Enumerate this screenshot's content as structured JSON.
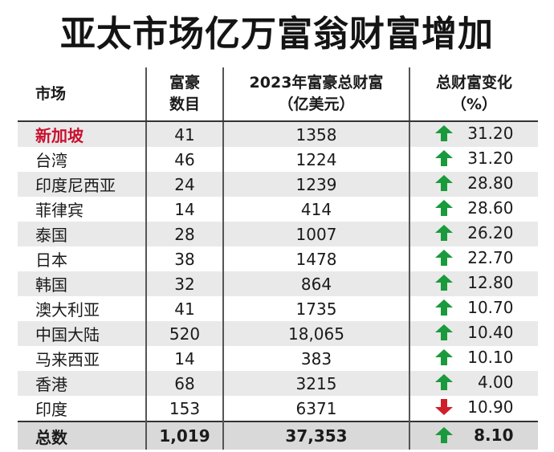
{
  "title": "亚太市场亿万富翁财富增加",
  "headers": {
    "market": "市场",
    "count_l1": "富豪",
    "count_l2": "数目",
    "wealth_l1": "2023年富豪总财富",
    "wealth_l2": "（亿美元）",
    "change_l1": "总财富变化",
    "change_l2": "（%）"
  },
  "colors": {
    "up": "#1a9a3c",
    "down": "#d01f2a",
    "highlight": "#c8102e"
  },
  "rows": [
    {
      "market": "新加坡",
      "count": "41",
      "wealth": "1358",
      "change": "31.20",
      "dir": "up"
    },
    {
      "market": "台湾",
      "count": "46",
      "wealth": "1224",
      "change": "31.20",
      "dir": "up"
    },
    {
      "market": "印度尼西亚",
      "count": "24",
      "wealth": "1239",
      "change": "28.80",
      "dir": "up"
    },
    {
      "market": "菲律宾",
      "count": "14",
      "wealth": "414",
      "change": "28.60",
      "dir": "up"
    },
    {
      "market": "泰国",
      "count": "28",
      "wealth": "1007",
      "change": "26.20",
      "dir": "up"
    },
    {
      "market": "日本",
      "count": "38",
      "wealth": "1478",
      "change": "22.70",
      "dir": "up"
    },
    {
      "market": "韩国",
      "count": "32",
      "wealth": "864",
      "change": "12.80",
      "dir": "up"
    },
    {
      "market": "澳大利亚",
      "count": "41",
      "wealth": "1735",
      "change": "10.70",
      "dir": "up"
    },
    {
      "market": "中国大陆",
      "count": "520",
      "wealth": "18,065",
      "change": "10.40",
      "dir": "up"
    },
    {
      "market": "马来西亚",
      "count": "14",
      "wealth": "383",
      "change": "10.10",
      "dir": "up"
    },
    {
      "market": "香港",
      "count": "68",
      "wealth": "3215",
      "change": "4.00",
      "dir": "up"
    },
    {
      "market": "印度",
      "count": "153",
      "wealth": "6371",
      "change": "10.90",
      "dir": "down"
    }
  ],
  "total": {
    "market": "总数",
    "count": "1,019",
    "wealth": "37,353",
    "change": "8.10",
    "dir": "up"
  }
}
